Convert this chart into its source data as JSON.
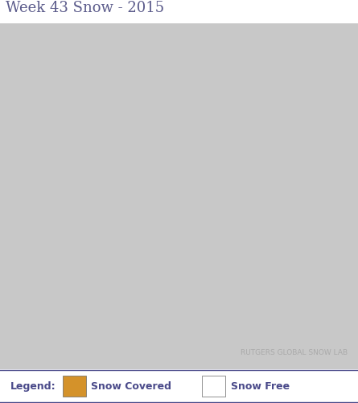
{
  "title": "Week 43 Snow - 2015",
  "title_fontsize": 13,
  "title_color": "#5a5a8a",
  "background_color": "#c8c8c8",
  "land_color": "#ffffff",
  "ocean_color": "#c8c8c8",
  "snow_color": "#D4922A",
  "border_color": "#000000",
  "legend_bg": "#dcdcdc",
  "legend_border_color": "#4a4a8a",
  "legend_text_color": "#4a4a8a",
  "legend_label": "Legend:",
  "legend_snow_covered": "Snow Covered",
  "legend_snow_free": "Snow Free",
  "watermark": "RUTGERS GLOBAL SNOW LAB",
  "watermark_color": "#aaaaaa",
  "header_bg": "#ffffff",
  "figsize": [
    4.45,
    5.02
  ],
  "dpi": 100
}
